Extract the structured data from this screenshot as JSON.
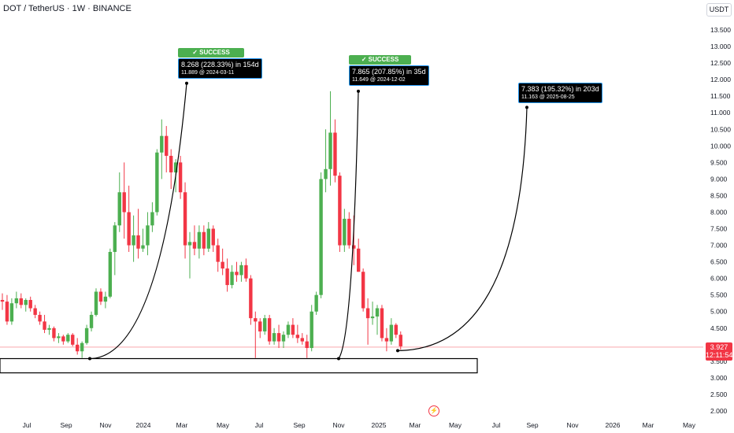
{
  "header": {
    "title": "DOT / TetherUS · 1W · BINANCE"
  },
  "price_axis": {
    "unit": "USDT"
  },
  "current_price": {
    "price": "3.927",
    "countdown": "12:11:54"
  },
  "annotations": [
    {
      "badge": "✓ SUCCESS",
      "line1": "8.268 (228.33%) in 154d",
      "line2": "11.889 @ 2024-03-11"
    },
    {
      "badge": "✓ SUCCESS",
      "line1": "7.865 (207.85%) in 35d",
      "line2": "11.649 @ 2024-12-02"
    },
    {
      "badge": "",
      "line1": "7.383 (195.32%) in 203d",
      "line2": "11.163 @ 2025-08-25"
    }
  ],
  "colors": {
    "up": "#4caf50",
    "down": "#f23645",
    "price_line": "#f23645",
    "box_border": "#2196f3"
  },
  "icons": {
    "replay": "lightning-bolt-icon"
  },
  "chart_data": {
    "type": "candlestick",
    "title": "DOT / TetherUS · 1W · BINANCE",
    "ylabel": "USDT",
    "ylim": [
      2.0,
      13.8
    ],
    "y_ticks": [
      "13.500",
      "13.000",
      "12.500",
      "12.000",
      "11.500",
      "11.000",
      "10.500",
      "10.000",
      "9.500",
      "9.000",
      "8.500",
      "8.000",
      "7.500",
      "7.000",
      "6.500",
      "6.000",
      "5.500",
      "5.000",
      "4.500",
      "4.000",
      "3.500",
      "3.000",
      "2.500",
      "2.000"
    ],
    "x_ticks": [
      "Jul",
      "Sep",
      "Nov",
      "2024",
      "Mar",
      "May",
      "Jul",
      "Sep",
      "Nov",
      "2025",
      "Mar",
      "May",
      "Jul",
      "Sep",
      "Nov",
      "2026",
      "Mar",
      "May"
    ],
    "grid": false,
    "candles": [
      {
        "o": 5.35,
        "h": 5.55,
        "l": 5.05,
        "c": 5.3
      },
      {
        "o": 5.3,
        "h": 5.5,
        "l": 4.6,
        "c": 4.7
      },
      {
        "o": 4.7,
        "h": 5.4,
        "l": 4.6,
        "c": 5.25
      },
      {
        "o": 5.25,
        "h": 5.6,
        "l": 5.1,
        "c": 5.4
      },
      {
        "o": 5.4,
        "h": 5.55,
        "l": 5.1,
        "c": 5.2
      },
      {
        "o": 5.2,
        "h": 5.4,
        "l": 5.0,
        "c": 5.35
      },
      {
        "o": 5.35,
        "h": 5.45,
        "l": 5.0,
        "c": 5.1
      },
      {
        "o": 5.1,
        "h": 5.2,
        "l": 4.8,
        "c": 4.9
      },
      {
        "o": 4.9,
        "h": 5.0,
        "l": 4.6,
        "c": 4.7
      },
      {
        "o": 4.7,
        "h": 4.9,
        "l": 4.35,
        "c": 4.45
      },
      {
        "o": 4.45,
        "h": 4.6,
        "l": 4.3,
        "c": 4.5
      },
      {
        "o": 4.5,
        "h": 4.55,
        "l": 4.1,
        "c": 4.2
      },
      {
        "o": 4.2,
        "h": 4.35,
        "l": 4.05,
        "c": 4.25
      },
      {
        "o": 4.25,
        "h": 4.3,
        "l": 4.0,
        "c": 4.1
      },
      {
        "o": 4.1,
        "h": 4.35,
        "l": 4.05,
        "c": 4.3
      },
      {
        "o": 4.3,
        "h": 4.35,
        "l": 3.95,
        "c": 4.0
      },
      {
        "o": 4.0,
        "h": 4.2,
        "l": 3.7,
        "c": 3.8
      },
      {
        "o": 3.8,
        "h": 4.1,
        "l": 3.6,
        "c": 4.05
      },
      {
        "o": 4.05,
        "h": 4.6,
        "l": 4.0,
        "c": 4.5
      },
      {
        "o": 4.5,
        "h": 5.0,
        "l": 4.4,
        "c": 4.9
      },
      {
        "o": 4.9,
        "h": 5.7,
        "l": 4.85,
        "c": 5.6
      },
      {
        "o": 5.6,
        "h": 5.7,
        "l": 5.2,
        "c": 5.3
      },
      {
        "o": 5.3,
        "h": 5.6,
        "l": 5.1,
        "c": 5.45
      },
      {
        "o": 5.45,
        "h": 6.9,
        "l": 5.4,
        "c": 6.8
      },
      {
        "o": 6.8,
        "h": 7.7,
        "l": 6.1,
        "c": 7.6
      },
      {
        "o": 7.6,
        "h": 9.2,
        "l": 7.4,
        "c": 8.6
      },
      {
        "o": 8.6,
        "h": 9.5,
        "l": 7.2,
        "c": 8.0
      },
      {
        "o": 8.0,
        "h": 8.8,
        "l": 6.8,
        "c": 7.0
      },
      {
        "o": 7.0,
        "h": 7.9,
        "l": 6.5,
        "c": 7.3
      },
      {
        "o": 7.3,
        "h": 8.1,
        "l": 6.6,
        "c": 6.9
      },
      {
        "o": 6.9,
        "h": 7.5,
        "l": 6.8,
        "c": 7.0
      },
      {
        "o": 7.0,
        "h": 8.0,
        "l": 6.7,
        "c": 7.6
      },
      {
        "o": 7.6,
        "h": 8.3,
        "l": 7.4,
        "c": 8.0
      },
      {
        "o": 8.0,
        "h": 9.9,
        "l": 7.9,
        "c": 9.8
      },
      {
        "o": 9.8,
        "h": 10.8,
        "l": 9.0,
        "c": 10.3
      },
      {
        "o": 10.3,
        "h": 10.6,
        "l": 9.2,
        "c": 9.7
      },
      {
        "o": 9.7,
        "h": 9.9,
        "l": 8.7,
        "c": 9.2
      },
      {
        "o": 9.2,
        "h": 9.6,
        "l": 8.6,
        "c": 9.5
      },
      {
        "o": 9.5,
        "h": 9.7,
        "l": 8.4,
        "c": 8.6
      },
      {
        "o": 8.6,
        "h": 8.9,
        "l": 6.6,
        "c": 7.0
      },
      {
        "o": 7.0,
        "h": 7.4,
        "l": 6.0,
        "c": 7.1
      },
      {
        "o": 7.1,
        "h": 7.6,
        "l": 6.7,
        "c": 6.9
      },
      {
        "o": 6.9,
        "h": 7.6,
        "l": 6.6,
        "c": 7.4
      },
      {
        "o": 7.4,
        "h": 7.6,
        "l": 6.7,
        "c": 6.9
      },
      {
        "o": 6.9,
        "h": 7.7,
        "l": 6.8,
        "c": 7.5
      },
      {
        "o": 7.5,
        "h": 7.6,
        "l": 6.8,
        "c": 7.0
      },
      {
        "o": 7.0,
        "h": 7.2,
        "l": 6.2,
        "c": 6.5
      },
      {
        "o": 6.5,
        "h": 6.9,
        "l": 6.1,
        "c": 6.3
      },
      {
        "o": 6.3,
        "h": 6.6,
        "l": 5.6,
        "c": 5.8
      },
      {
        "o": 5.8,
        "h": 6.4,
        "l": 5.7,
        "c": 6.2
      },
      {
        "o": 6.2,
        "h": 6.5,
        "l": 5.9,
        "c": 6.1
      },
      {
        "o": 6.1,
        "h": 6.5,
        "l": 5.9,
        "c": 6.4
      },
      {
        "o": 6.4,
        "h": 6.6,
        "l": 5.9,
        "c": 6.0
      },
      {
        "o": 6.0,
        "h": 6.1,
        "l": 4.6,
        "c": 4.8
      },
      {
        "o": 4.8,
        "h": 5.0,
        "l": 3.6,
        "c": 4.7
      },
      {
        "o": 4.7,
        "h": 4.8,
        "l": 4.2,
        "c": 4.4
      },
      {
        "o": 4.4,
        "h": 4.9,
        "l": 4.3,
        "c": 4.8
      },
      {
        "o": 4.8,
        "h": 4.9,
        "l": 4.0,
        "c": 4.1
      },
      {
        "o": 4.1,
        "h": 4.5,
        "l": 4.0,
        "c": 4.35
      },
      {
        "o": 4.35,
        "h": 4.6,
        "l": 3.9,
        "c": 4.1
      },
      {
        "o": 4.1,
        "h": 4.4,
        "l": 3.9,
        "c": 4.3
      },
      {
        "o": 4.3,
        "h": 4.7,
        "l": 4.2,
        "c": 4.6
      },
      {
        "o": 4.6,
        "h": 4.8,
        "l": 4.2,
        "c": 4.3
      },
      {
        "o": 4.3,
        "h": 4.6,
        "l": 4.05,
        "c": 4.2
      },
      {
        "o": 4.2,
        "h": 4.35,
        "l": 4.0,
        "c": 4.1
      },
      {
        "o": 4.1,
        "h": 4.3,
        "l": 3.6,
        "c": 3.9
      },
      {
        "o": 3.9,
        "h": 5.2,
        "l": 3.8,
        "c": 5.0
      },
      {
        "o": 5.0,
        "h": 5.6,
        "l": 4.9,
        "c": 5.5
      },
      {
        "o": 5.5,
        "h": 9.2,
        "l": 5.4,
        "c": 9.0
      },
      {
        "o": 9.0,
        "h": 10.5,
        "l": 8.6,
        "c": 9.3
      },
      {
        "o": 9.3,
        "h": 11.65,
        "l": 8.8,
        "c": 10.4
      },
      {
        "o": 10.4,
        "h": 10.8,
        "l": 8.9,
        "c": 9.1
      },
      {
        "o": 9.1,
        "h": 9.2,
        "l": 6.8,
        "c": 7.0
      },
      {
        "o": 7.0,
        "h": 8.1,
        "l": 6.8,
        "c": 7.8
      },
      {
        "o": 7.8,
        "h": 8.0,
        "l": 6.9,
        "c": 7.0
      },
      {
        "o": 7.0,
        "h": 7.9,
        "l": 6.4,
        "c": 6.9
      },
      {
        "o": 6.9,
        "h": 7.2,
        "l": 6.2,
        "c": 6.2
      },
      {
        "o": 6.2,
        "h": 6.3,
        "l": 5.0,
        "c": 5.1
      },
      {
        "o": 5.1,
        "h": 5.4,
        "l": 4.0,
        "c": 4.8
      },
      {
        "o": 4.8,
        "h": 5.3,
        "l": 4.6,
        "c": 4.85
      },
      {
        "o": 4.85,
        "h": 5.2,
        "l": 4.3,
        "c": 5.1
      },
      {
        "o": 5.1,
        "h": 5.2,
        "l": 4.1,
        "c": 4.2
      },
      {
        "o": 4.2,
        "h": 4.5,
        "l": 3.8,
        "c": 4.1
      },
      {
        "o": 4.1,
        "h": 4.8,
        "l": 4.0,
        "c": 4.6
      },
      {
        "o": 4.6,
        "h": 4.65,
        "l": 4.2,
        "c": 4.3
      },
      {
        "o": 4.3,
        "h": 4.4,
        "l": 3.85,
        "c": 3.95
      }
    ],
    "support_zone": [
      3.15,
      3.58
    ],
    "current_price": 3.927
  }
}
